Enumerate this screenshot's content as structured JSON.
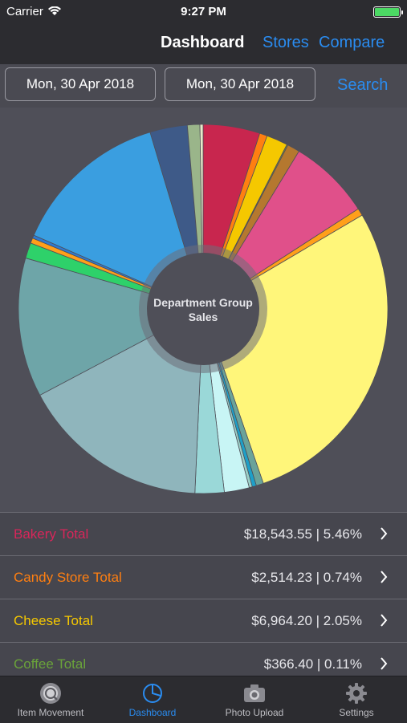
{
  "status": {
    "carrier": "Carrier",
    "time": "9:27 PM",
    "battery_level": 1.0
  },
  "nav": {
    "title": "Dashboard",
    "stores_label": "Stores",
    "compare_label": "Compare"
  },
  "filters": {
    "start_date": "Mon, 30 Apr 2018",
    "end_date": "Mon, 30 Apr 2018",
    "search_label": "Search"
  },
  "chart_data": {
    "type": "pie",
    "center_label": "Department Group Sales",
    "slices": [
      {
        "label": "Bakery Total",
        "value": 5.46,
        "color": "#c8264e"
      },
      {
        "label": "Candy Store Total",
        "value": 0.74,
        "color": "#ff7f11"
      },
      {
        "label": "Cheese Total",
        "value": 2.05,
        "color": "#f5c800"
      },
      {
        "label": "Coffee Total",
        "value": 0.11,
        "color": "#7a8a3a"
      },
      {
        "label": "",
        "value": 1.2,
        "color": "#b5782f"
      },
      {
        "label": "",
        "value": 7.9,
        "color": "#e0508a"
      },
      {
        "label": "",
        "value": 0.7,
        "color": "#ff9f1a"
      },
      {
        "label": "",
        "value": 31.0,
        "color": "#fff67a"
      },
      {
        "label": "",
        "value": 0.7,
        "color": "#6aa39a"
      },
      {
        "label": "",
        "value": 0.4,
        "color": "#1ea0c8"
      },
      {
        "label": "",
        "value": 0.3,
        "color": "#9ad0c8"
      },
      {
        "label": "",
        "value": 2.4,
        "color": "#c8f5f5"
      },
      {
        "label": "",
        "value": 2.8,
        "color": "#9ad8d8"
      },
      {
        "label": "",
        "value": 18.2,
        "color": "#8fb5bc"
      },
      {
        "label": "",
        "value": 13.4,
        "color": "#6ea5a8"
      },
      {
        "label": "",
        "value": 1.5,
        "color": "#2ed16a"
      },
      {
        "label": "",
        "value": 0.5,
        "color": "#ff9f1a"
      },
      {
        "label": "",
        "value": 0.3,
        "color": "#2e7ad1"
      },
      {
        "label": "",
        "value": 15.2,
        "color": "#3a9ee0"
      },
      {
        "label": "",
        "value": 3.6,
        "color": "#3e5a88"
      },
      {
        "label": "",
        "value": 1.2,
        "color": "#9ab58a"
      },
      {
        "label": "",
        "value": 0.3,
        "color": "#e8e8c8"
      }
    ]
  },
  "rows": [
    {
      "label": "Bakery Total",
      "value": "$18,543.55 | 5.46%",
      "color": "#d8265a"
    },
    {
      "label": "Candy Store Total",
      "value": "$2,514.23 | 0.74%",
      "color": "#ff7f11"
    },
    {
      "label": "Cheese Total",
      "value": "$6,964.20 | 2.05%",
      "color": "#f5c800"
    },
    {
      "label": "Coffee Total",
      "value": "$366.40 | 0.11%",
      "color": "#6aa33a"
    }
  ],
  "tabs": [
    {
      "label": "Item Movement",
      "icon": "search-icon"
    },
    {
      "label": "Dashboard",
      "icon": "pie-chart-icon",
      "active": true
    },
    {
      "label": "Photo Upload",
      "icon": "camera-icon"
    },
    {
      "label": "Settings",
      "icon": "gear-icon"
    }
  ]
}
